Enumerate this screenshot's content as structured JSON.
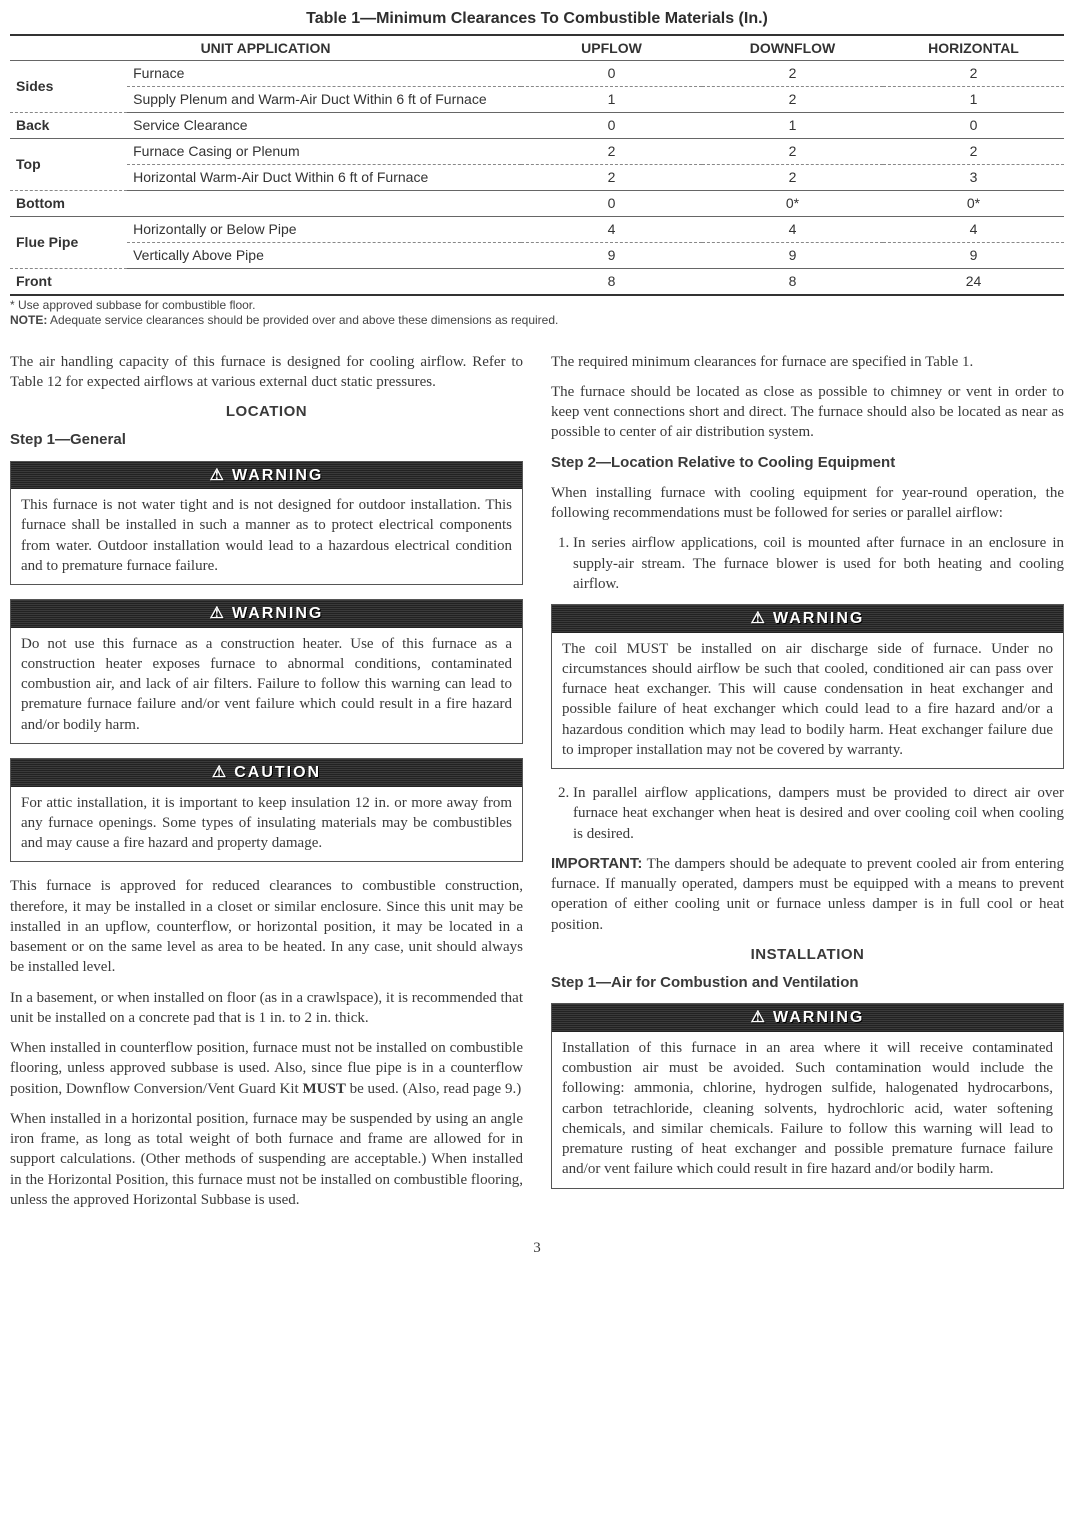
{
  "table": {
    "title": "Table 1—Minimum Clearances To Combustible Materials (In.)",
    "headers": {
      "app": "UNIT APPLICATION",
      "c1": "UPFLOW",
      "c2": "DOWNFLOW",
      "c3": "HORIZONTAL"
    },
    "rows": [
      {
        "label": "Sides",
        "rowspan": 2,
        "desc": "Furnace",
        "v": [
          "0",
          "2",
          "2"
        ],
        "style": "row"
      },
      {
        "desc": "Supply Plenum and Warm-Air Duct Within 6 ft of Furnace",
        "v": [
          "1",
          "2",
          "1"
        ],
        "style": "row-solid"
      },
      {
        "label": "Back",
        "desc": "Service Clearance",
        "v": [
          "0",
          "1",
          "0"
        ],
        "style": "row-solid"
      },
      {
        "label": "Top",
        "rowspan": 2,
        "desc": "Furnace Casing or Plenum",
        "v": [
          "2",
          "2",
          "2"
        ],
        "style": "row"
      },
      {
        "desc": "Horizontal Warm-Air Duct Within 6 ft of Furnace",
        "v": [
          "2",
          "2",
          "3"
        ],
        "style": "row-solid"
      },
      {
        "label": "Bottom",
        "colspan": 2,
        "v": [
          "0",
          "0*",
          "0*"
        ],
        "style": "row-solid"
      },
      {
        "label": "Flue Pipe",
        "rowspan": 2,
        "desc": "Horizontally or Below Pipe",
        "v": [
          "4",
          "4",
          "4"
        ],
        "style": "row"
      },
      {
        "desc": "Vertically Above Pipe",
        "v": [
          "9",
          "9",
          "9"
        ],
        "style": "row-solid"
      },
      {
        "label": "Front",
        "colspan": 2,
        "v": [
          "8",
          "8",
          "24"
        ],
        "style": "row-last"
      }
    ],
    "footnote_star": "* Use approved subbase for combustible floor.",
    "footnote_note_b": "NOTE:",
    "footnote_note": " Adequate service clearances should be provided over and above these dimensions as required."
  },
  "left": {
    "intro": "The air handling capacity of this furnace is designed for cooling airflow. Refer to Table 12 for expected airflows at various external duct static pressures.",
    "location": "LOCATION",
    "step1": "Step 1—General",
    "warn1": "This furnace is not water tight and is not designed for outdoor installation. This furnace shall be installed in such a manner as to protect electrical components from water. Outdoor installation would lead to a hazardous electrical condition and to premature furnace failure.",
    "warn2": "Do not use this furnace as a construction heater. Use of this furnace as a construction heater exposes furnace to abnormal conditions, contaminated combustion air, and lack of air filters. Failure to follow this warning can lead to premature furnace failure and/or vent failure which could result in a fire hazard and/or bodily harm.",
    "caution1": "For attic installation, it is important to keep insulation 12 in. or more away from any furnace openings. Some types of insulating materials may be combustibles and may cause a fire hazard and property damage.",
    "p1": "This furnace is approved for reduced clearances to combustible construction, therefore, it may be installed in a closet or similar enclosure. Since this unit may be installed in an upflow, counterflow, or horizontal position, it may be located in a basement or on the same level as area to be heated. In any case, unit should always be installed level.",
    "p2": "In a basement, or when installed on floor (as in a crawlspace), it is recommended that unit be installed on a concrete pad that is 1 in. to 2 in. thick.",
    "p3a": "When installed in counterflow position, furnace must not be installed on combustible flooring, unless approved subbase is used. Also, since flue pipe is in a counterflow position, Downflow Conversion/Vent Guard Kit ",
    "p3_must": "MUST",
    "p3b": " be used. (Also, read page 9.)",
    "p4": "When installed in a horizontal position, furnace may be suspended by using an angle iron frame, as long as total weight of both furnace and frame are allowed for in support calculations. (Other methods of suspending are acceptable.) When installed in the Horizontal Position, this furnace must not be installed on combustible flooring, unless the approved Horizontal Subbase is used."
  },
  "right": {
    "r1": "The required minimum clearances for furnace are specified in Table 1.",
    "r2": "The furnace should be located as close as possible to chimney or vent in order to keep vent connections short and direct. The furnace should also be located as near as possible to center of air distribution system.",
    "step2": "Step 2—Location Relative to Cooling Equipment",
    "r3": "When installing furnace with cooling equipment for year-round operation, the following recommendations must be followed for series or parallel airflow:",
    "li1": "In series airflow applications, coil is mounted after furnace in an enclosure in supply-air stream. The furnace blower is used for both heating and cooling airflow.",
    "warn3": "The coil MUST be installed on air discharge side of furnace. Under no circumstances should airflow be such that cooled, conditioned air can pass over furnace heat exchanger. This will cause condensation in heat exchanger and possible failure of heat exchanger which could lead to a fire hazard and/or a hazardous condition which may lead to bodily harm. Heat exchanger failure due to improper installation may not be covered by warranty.",
    "li2": "In parallel airflow applications, dampers must be provided to direct air over furnace heat exchanger when heat is desired and over cooling coil when cooling is desired.",
    "imp_b": "IMPORTANT:",
    "imp_t": " The dampers should be adequate to prevent cooled air from entering furnace. If manually operated, dampers must be equipped with a means to prevent operation of either cooling unit or furnace unless damper is in full cool or heat position.",
    "installation": "INSTALLATION",
    "step1b": "Step 1—Air for Combustion and Ventilation",
    "warn4": "Installation of this furnace in an area where it will receive contaminated combustion air must be avoided. Such contamination would include the following: ammonia, chlorine, hydrogen sulfide, halogenated hydrocarbons, carbon tetrachloride, cleaning solvents, hydrochloric acid, water softening chemicals, and similar chemicals. Failure to follow this warning will lead to premature rusting of heat exchanger and possible premature furnace failure and/or vent failure which could result in fire hazard and/or bodily harm."
  },
  "labels": {
    "warning": "WARNING",
    "caution": "CAUTION",
    "tri": "⚠"
  },
  "pagenum": "3"
}
